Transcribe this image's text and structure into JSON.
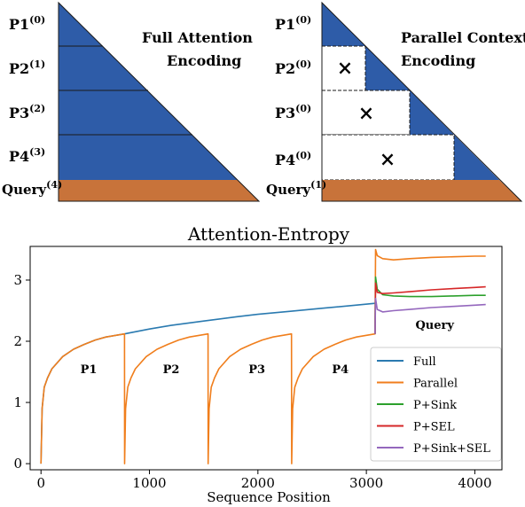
{
  "diagrams": {
    "left": {
      "title_line1": "Full Attention",
      "title_line2": "Encoding",
      "rows": [
        {
          "label": "P1",
          "sup": "(0)"
        },
        {
          "label": "P2",
          "sup": "(1)"
        },
        {
          "label": "P3",
          "sup": "(2)"
        },
        {
          "label": "P4",
          "sup": "(3)"
        },
        {
          "label": "Query",
          "sup": "(4)"
        }
      ]
    },
    "right": {
      "title_line1": "Parallel Context",
      "title_line2": "Encoding",
      "rows": [
        {
          "label": "P1",
          "sup": "(0)"
        },
        {
          "label": "P2",
          "sup": "(0)"
        },
        {
          "label": "P3",
          "sup": "(0)"
        },
        {
          "label": "P4",
          "sup": "(0)"
        },
        {
          "label": "Query",
          "sup": "(1)"
        }
      ],
      "mask_symbol": "×"
    },
    "colors": {
      "context": "#2e5ca8",
      "query": "#c8733a"
    }
  },
  "chart_data": {
    "type": "line",
    "title": "Attention-Entropy",
    "xlabel": "Sequence Position",
    "ylabel": "",
    "xlim": [
      -100,
      4250
    ],
    "ylim": [
      -0.1,
      3.55
    ],
    "xticks": [
      0,
      1000,
      2000,
      3000,
      4000
    ],
    "yticks": [
      0,
      1,
      2,
      3
    ],
    "grid": false,
    "legend_position": "bottom-right",
    "segment_labels": [
      {
        "text": "P1",
        "x": 440,
        "y": 1.48
      },
      {
        "text": "P2",
        "x": 1200,
        "y": 1.48
      },
      {
        "text": "P3",
        "x": 1990,
        "y": 1.48
      },
      {
        "text": "P4",
        "x": 2760,
        "y": 1.48
      },
      {
        "text": "Query",
        "x": 3630,
        "y": 2.2
      }
    ],
    "series": [
      {
        "name": "Full",
        "color": "#2a7ab0",
        "x": [
          0,
          10,
          30,
          60,
          100,
          200,
          300,
          400,
          500,
          600,
          770,
          1000,
          1200,
          1500,
          1800,
          2000,
          2300,
          2600,
          2900,
          3080
        ],
        "y": [
          0.0,
          0.9,
          1.25,
          1.4,
          1.55,
          1.75,
          1.87,
          1.95,
          2.02,
          2.07,
          2.12,
          2.2,
          2.26,
          2.33,
          2.4,
          2.44,
          2.49,
          2.54,
          2.59,
          2.62
        ]
      },
      {
        "name": "Parallel",
        "color": "#f07e1c",
        "x": [
          0,
          10,
          30,
          60,
          100,
          200,
          300,
          400,
          500,
          600,
          770,
          771,
          780,
          800,
          830,
          870,
          970,
          1070,
          1170,
          1270,
          1370,
          1540,
          1541,
          1550,
          1570,
          1600,
          1640,
          1740,
          1840,
          1940,
          2040,
          2140,
          2310,
          2311,
          2320,
          2340,
          2370,
          2410,
          2510,
          2610,
          2710,
          2810,
          2910,
          3080,
          3085,
          3100,
          3150,
          3250,
          3400,
          3600,
          3800,
          4000,
          4100
        ],
        "y": [
          0.0,
          0.9,
          1.25,
          1.4,
          1.55,
          1.75,
          1.87,
          1.95,
          2.02,
          2.07,
          2.12,
          0.0,
          0.9,
          1.25,
          1.4,
          1.55,
          1.75,
          1.87,
          1.95,
          2.02,
          2.07,
          2.12,
          0.0,
          0.9,
          1.25,
          1.4,
          1.55,
          1.75,
          1.87,
          1.95,
          2.02,
          2.07,
          2.12,
          0.0,
          0.9,
          1.25,
          1.4,
          1.55,
          1.75,
          1.87,
          1.95,
          2.02,
          2.07,
          2.12,
          3.5,
          3.4,
          3.35,
          3.33,
          3.35,
          3.37,
          3.38,
          3.39,
          3.39
        ]
      },
      {
        "name": "P+Sink",
        "color": "#2ca02c",
        "x": [
          3080,
          3085,
          3100,
          3150,
          3250,
          3400,
          3600,
          3800,
          4000,
          4100
        ],
        "y": [
          2.12,
          3.05,
          2.85,
          2.76,
          2.74,
          2.73,
          2.73,
          2.74,
          2.75,
          2.75
        ]
      },
      {
        "name": "P+SEL",
        "color": "#d62728",
        "x": [
          3080,
          3085,
          3100,
          3150,
          3250,
          3400,
          3600,
          3800,
          4000,
          4100
        ],
        "y": [
          2.12,
          2.95,
          2.8,
          2.78,
          2.79,
          2.81,
          2.84,
          2.86,
          2.88,
          2.89
        ]
      },
      {
        "name": "P+Sink+SEL",
        "color": "#9467bd",
        "x": [
          3080,
          3085,
          3100,
          3150,
          3250,
          3400,
          3600,
          3800,
          4000,
          4100
        ],
        "y": [
          2.12,
          2.7,
          2.52,
          2.48,
          2.5,
          2.52,
          2.55,
          2.57,
          2.59,
          2.6
        ]
      }
    ]
  }
}
